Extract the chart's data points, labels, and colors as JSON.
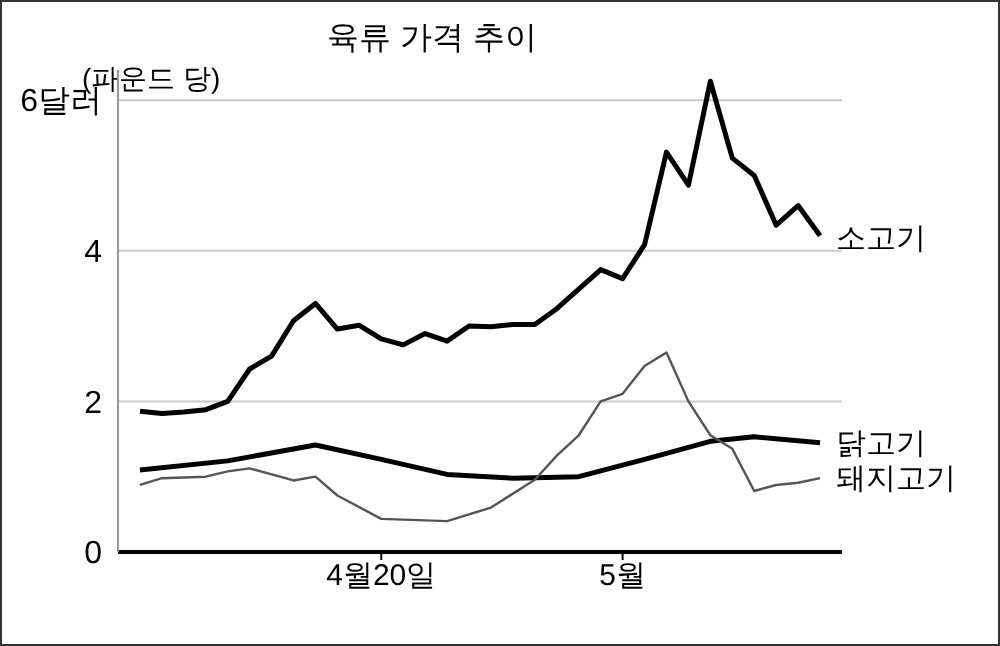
{
  "chart_data": {
    "type": "line",
    "title": "육류 가격 추이",
    "ylabel": "(파운드 당)",
    "xlim": [
      "--04-08",
      "--05-11"
    ],
    "xticks": [
      {
        "value": "--04-20",
        "label": "4월20일"
      },
      {
        "value": "--05-01",
        "label": "5월"
      }
    ],
    "ylim": [
      0,
      6.4
    ],
    "yticks": [
      0,
      2,
      4,
      {
        "value": 6,
        "label": "6달러"
      }
    ],
    "grid": "y",
    "legend": false,
    "marker": "none",
    "line_style": "solid",
    "series": [
      {
        "name": "소고기",
        "color": "#000000",
        "x": [
          "--04-09",
          "--04-10",
          "--04-11",
          "--04-12",
          "--04-13",
          "--04-14",
          "--04-15",
          "--04-16",
          "--04-17",
          "--04-18",
          "--04-19",
          "--04-20",
          "--04-21",
          "--04-22",
          "--04-23",
          "--04-24",
          "--04-25",
          "--04-26",
          "--04-27",
          "--04-28",
          "--04-29",
          "--04-30",
          "--05-01",
          "--05-02",
          "--05-03",
          "--05-04",
          "--05-05",
          "--05-06",
          "--05-07",
          "--05-08",
          "--05-09",
          "--05-10"
        ],
        "values": [
          1.87,
          1.84,
          1.86,
          1.89,
          2.0,
          2.43,
          2.6,
          3.07,
          3.3,
          2.96,
          3.01,
          2.83,
          2.75,
          2.9,
          2.8,
          3.0,
          2.99,
          3.02,
          3.02,
          3.23,
          3.49,
          3.75,
          3.63,
          4.08,
          5.31,
          4.87,
          6.25,
          5.23,
          5.0,
          4.34,
          4.6,
          4.2
        ]
      },
      {
        "name": "닭고기",
        "color": "#000000",
        "x": [
          "--04-09",
          "--04-13",
          "--04-17",
          "--04-20",
          "--04-23",
          "--04-26",
          "--04-29",
          "--05-02",
          "--05-05",
          "--05-07",
          "--05-10"
        ],
        "values": [
          1.09,
          1.21,
          1.42,
          1.23,
          1.03,
          0.98,
          1.0,
          1.23,
          1.47,
          1.53,
          1.45
        ]
      },
      {
        "name": "돼지고기",
        "color": "#555555",
        "x": [
          "--04-09",
          "--04-10",
          "--04-12",
          "--04-13",
          "--04-14",
          "--04-16",
          "--04-17",
          "--04-18",
          "--04-20",
          "--04-23",
          "--04-25",
          "--04-27",
          "--04-28",
          "--04-29",
          "--04-30",
          "--05-01",
          "--05-02",
          "--05-03",
          "--05-04",
          "--05-05",
          "--05-06",
          "--05-07",
          "--05-08",
          "--05-09",
          "--05-10"
        ],
        "values": [
          0.89,
          0.98,
          1.0,
          1.07,
          1.11,
          0.95,
          1.0,
          0.75,
          0.44,
          0.41,
          0.59,
          0.96,
          1.28,
          1.55,
          2.0,
          2.1,
          2.47,
          2.65,
          2.0,
          1.55,
          1.37,
          0.81,
          0.89,
          0.92,
          0.98
        ]
      }
    ]
  }
}
